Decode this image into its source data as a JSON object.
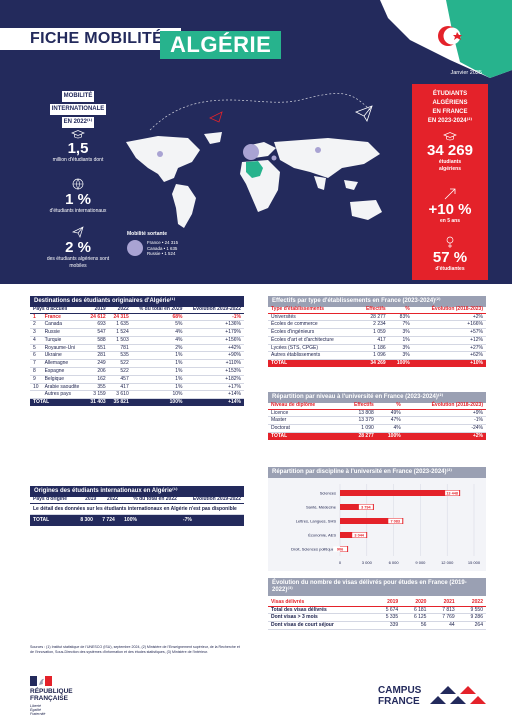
{
  "header": {
    "title": "FICHE MOBILITÉ",
    "country": "ALGÉRIE",
    "date": "Janvier 2025"
  },
  "left_panel": {
    "label_lines": [
      "MOBILITÉ",
      "INTERNATIONALE",
      "EN 2022⁽¹⁾"
    ],
    "stats": [
      {
        "value": "1,5",
        "desc": "million d'étudiants dont",
        "icon": "graduation-cap-icon"
      },
      {
        "value": "1 %",
        "desc": "d'étudiants internationaux",
        "icon": "globe-icon"
      },
      {
        "value": "2 %",
        "desc": "des étudiants algériens sont mobiles",
        "icon": "paper-plane-icon"
      }
    ]
  },
  "right_panel": {
    "label_lines": [
      "ÉTUDIANTS",
      "ALGÉRIENS",
      "EN FRANCE",
      "EN 2023-2024⁽²⁾"
    ],
    "stats": [
      {
        "value": "34 269",
        "desc": "étudiants algériens",
        "icon": "graduation-cap-icon"
      },
      {
        "value": "+10 %",
        "desc": "en 5 ans",
        "icon": "growth-arrow-icon"
      },
      {
        "value": "57 %",
        "desc": "d'étudiantes",
        "icon": "female-icon"
      }
    ]
  },
  "map_legend": {
    "title": "Mobilité sortante",
    "rows": [
      "France • 24 315",
      "Canada • 1 635",
      "Russie • 1 524"
    ]
  },
  "colors": {
    "navy": "#232a5c",
    "green": "#27b38d",
    "red": "#e4222a",
    "grey": "#9aa0b3"
  },
  "destinations": {
    "title": "Destinations des étudiants originaires d'Algérie⁽¹⁾",
    "headers": [
      "Pays d'accueil",
      "2019",
      "2022",
      "% du total en 2029",
      "Évolution 2019-2022"
    ],
    "rows": [
      [
        "1",
        "France",
        "24 612",
        "24 315",
        "68%",
        "-1%"
      ],
      [
        "2",
        "Canada",
        "693",
        "1 635",
        "5%",
        "+136%"
      ],
      [
        "3",
        "Russie",
        "547",
        "1 524",
        "4%",
        "+179%"
      ],
      [
        "4",
        "Turquie",
        "588",
        "1 503",
        "4%",
        "+156%"
      ],
      [
        "5",
        "Royaume-Uni",
        "551",
        "781",
        "2%",
        "+42%"
      ],
      [
        "6",
        "Ukraine",
        "281",
        "535",
        "1%",
        "+90%"
      ],
      [
        "7",
        "Allemagne",
        "249",
        "522",
        "1%",
        "+110%"
      ],
      [
        "8",
        "Espagne",
        "206",
        "522",
        "1%",
        "+153%"
      ],
      [
        "9",
        "Belgique",
        "162",
        "457",
        "1%",
        "+182%"
      ],
      [
        "10",
        "Arabie saoudite",
        "355",
        "417",
        "1%",
        "+17%"
      ],
      [
        "",
        "Autres pays",
        "3 159",
        "3 610",
        "10%",
        "+14%"
      ]
    ],
    "total": [
      "TOTAL",
      "31 403",
      "35 821",
      "100%",
      "+14%"
    ]
  },
  "origins": {
    "title": "Origines des étudiants internationaux en Algérie⁽¹⁾",
    "headers": [
      "Pays d'origine",
      "2019",
      "2022",
      "% du total en 2022",
      "Évolution 2019-2022"
    ],
    "note": "Le détail des données sur les étudiants internationaux en Algérie n'est pas disponible",
    "total": [
      "TOTAL",
      "8 300",
      "7 724",
      "100%",
      "-7%"
    ]
  },
  "etablissements": {
    "title": "Effectifs par type d'établissements en France (2023-2024)⁽²⁾",
    "headers": [
      "Type d'établissements",
      "Effectifs",
      "%",
      "Évolution (2018-2023)"
    ],
    "rows": [
      [
        "Universités",
        "28 277",
        "83%",
        "+2%"
      ],
      [
        "Écoles de commerce",
        "2 234",
        "7%",
        "+166%"
      ],
      [
        "Écoles d'ingénieurs",
        "1 059",
        "3%",
        "+57%"
      ],
      [
        "Écoles d'art et d'architecture",
        "417",
        "1%",
        "+12%"
      ],
      [
        "Lycées (STS, CPGE)",
        "1 186",
        "3%",
        "+27%"
      ],
      [
        "Autres établissements",
        "1 096",
        "3%",
        "+62%"
      ]
    ],
    "total": [
      "TOTAL",
      "34 269",
      "100%",
      "+10%"
    ]
  },
  "niveaux": {
    "title": "Répartition par niveau à l'université en France (2023-2024)⁽²⁾",
    "headers": [
      "Niveau de diplôme",
      "Effectifs",
      "%",
      "Évolution (2018-2023)"
    ],
    "rows": [
      [
        "Licence",
        "13 808",
        "49%",
        "+9%"
      ],
      [
        "Master",
        "13 379",
        "47%",
        "-1%"
      ],
      [
        "Doctorat",
        "1 090",
        "4%",
        "-24%"
      ]
    ],
    "total": [
      "TOTAL",
      "28 277",
      "100%",
      "+2%"
    ]
  },
  "chart_data": {
    "type": "bar",
    "orientation": "horizontal",
    "title": "Répartition par discipline à l'université en France (2023-2024)⁽²⁾",
    "categories": [
      "Sciences",
      "Santé, Médecine",
      "Lettres, Langues, SHS",
      "Économie, AES",
      "Droit, Sciences politiques"
    ],
    "values": [
      13448,
      3794,
      7083,
      3044,
      906
    ],
    "value_labels": [
      "13 448",
      "3 794",
      "7 083",
      "3 044",
      "906"
    ],
    "xlim": [
      0,
      15000
    ],
    "xticks": [
      0,
      3000,
      6000,
      9000,
      12000,
      15000
    ],
    "xtick_labels": [
      "0",
      "3 000",
      "6 000",
      "9 000",
      "12 000",
      "15 000"
    ],
    "bar_color": "#e4222a",
    "grid": true
  },
  "visas": {
    "title": "Évolution du nombre de visas délivrés pour études en France (2019-2022)⁽³⁾",
    "headers": [
      "Visas délivrés",
      "2019",
      "2020",
      "2021",
      "2022"
    ],
    "rows": [
      [
        "Total des visas délivrés",
        "5 674",
        "6 181",
        "7 813",
        "9 550"
      ],
      [
        "Dont visas > 3 mois",
        "5 335",
        "6 125",
        "7 769",
        "9 286"
      ],
      [
        "Dont visas de court séjour",
        "339",
        "56",
        "44",
        "264"
      ]
    ]
  },
  "footer": {
    "sources": "Sources : (1) Institut statistique de l'UNESCO (ISU), septembre 2024, (2) Ministère de l'Enseignement supérieur, de la Recherche et de l'Innovation, Sous-Direction des systèmes d'information et des études statistiques, (3) Ministère de l'Intérieur.",
    "rf_lines": [
      "RÉPUBLIQUE",
      "FRANÇAISE"
    ],
    "rf_motto": [
      "Liberté",
      "Égalité",
      "Fraternité"
    ],
    "cf_lines": [
      "CAMPUS",
      "FRANCE"
    ]
  }
}
